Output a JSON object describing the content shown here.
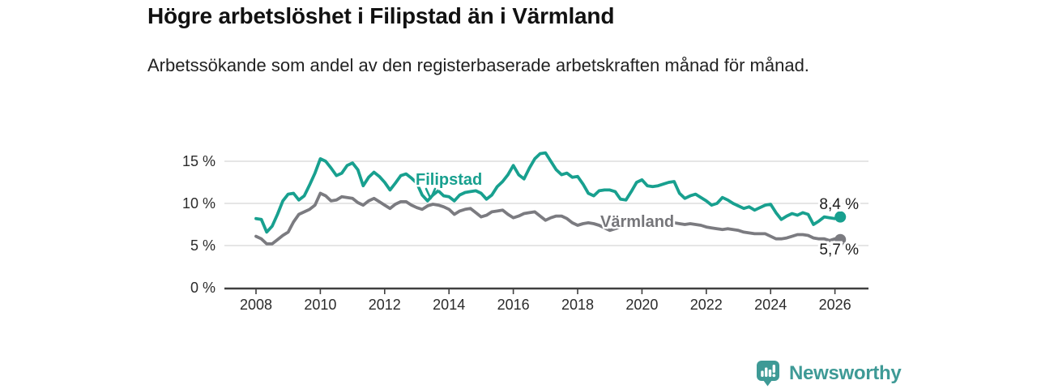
{
  "header": {
    "title": "Högre arbetslöshet i Filipstad än i Värmland",
    "subtitle": "Arbetssökande som andel av den registerbaserade arbetskraften månad för månad."
  },
  "footer": {
    "brand": "Newsworthy",
    "brand_color": "#3e9a96",
    "logo_icon": "bar-chart-speech-bubble-icon"
  },
  "chart_data": {
    "type": "line",
    "title": "Högre arbetslöshet i Filipstad än i Värmland",
    "subtitle": "Arbetssökande som andel av den registerbaserade arbetskraften månad för månad.",
    "xlabel": "",
    "ylabel": "",
    "grid": "horizontal",
    "legend_position": "inline-series-labels",
    "x_axis": {
      "ticks": [
        2008,
        2010,
        2012,
        2014,
        2016,
        2018,
        2020,
        2022,
        2024,
        2026
      ],
      "range": [
        2007.0,
        2027.0
      ]
    },
    "y_axis": {
      "ticks": [
        {
          "value": 0,
          "label": "0 %"
        },
        {
          "value": 5,
          "label": "5 %"
        },
        {
          "value": 10,
          "label": "10 %"
        },
        {
          "value": 15,
          "label": "15 %"
        }
      ],
      "gridlines": [
        5,
        10,
        15
      ],
      "range": [
        0,
        16.5
      ]
    },
    "x_start": 2008.0,
    "x_step_years": 0.166667,
    "series": [
      {
        "name": "Filipstad",
        "annotation": "Filipstad",
        "end_label": "8,4 %",
        "end_value": 8.4,
        "color": "#18a08f",
        "values": [
          8.2,
          8.1,
          6.6,
          7.3,
          8.7,
          10.3,
          11.1,
          11.2,
          10.4,
          10.9,
          12.2,
          13.6,
          15.3,
          15.0,
          14.2,
          13.3,
          13.6,
          14.5,
          14.8,
          14.0,
          12.1,
          13.1,
          13.7,
          13.2,
          12.5,
          11.6,
          12.4,
          13.3,
          13.5,
          13.0,
          12.4,
          11.0,
          10.3,
          11.0,
          11.5,
          10.9,
          10.8,
          10.3,
          11.0,
          11.3,
          11.4,
          11.5,
          11.2,
          10.5,
          11.0,
          12.0,
          12.6,
          13.4,
          14.5,
          13.4,
          12.9,
          14.2,
          15.3,
          15.9,
          16.0,
          15.0,
          14.0,
          13.4,
          13.6,
          13.1,
          13.2,
          12.3,
          11.2,
          10.9,
          11.5,
          11.6,
          11.6,
          11.4,
          10.5,
          10.4,
          11.4,
          12.5,
          12.8,
          12.1,
          12.0,
          12.1,
          12.3,
          12.5,
          12.6,
          11.2,
          10.6,
          10.9,
          11.1,
          10.7,
          10.3,
          9.8,
          10.0,
          10.7,
          10.4,
          10.0,
          9.7,
          9.4,
          9.6,
          9.2,
          9.5,
          9.8,
          9.9,
          8.9,
          8.1,
          8.5,
          8.8,
          8.6,
          8.9,
          8.7,
          7.5,
          7.9,
          8.4,
          8.3,
          8.2,
          8.4
        ]
      },
      {
        "name": "Värmland",
        "annotation": "Värmland",
        "end_label": "5,7 %",
        "end_value": 5.7,
        "color": "#7b7b80",
        "values": [
          6.1,
          5.8,
          5.2,
          5.2,
          5.7,
          6.2,
          6.6,
          7.8,
          8.7,
          9.0,
          9.3,
          9.8,
          11.2,
          10.9,
          10.3,
          10.4,
          10.8,
          10.7,
          10.6,
          10.1,
          9.8,
          10.3,
          10.6,
          10.2,
          9.8,
          9.4,
          9.9,
          10.2,
          10.2,
          9.8,
          9.5,
          9.3,
          9.7,
          9.9,
          9.8,
          9.6,
          9.3,
          8.7,
          9.1,
          9.3,
          9.4,
          8.9,
          8.4,
          8.6,
          9.0,
          9.1,
          9.2,
          8.7,
          8.3,
          8.5,
          8.8,
          8.9,
          9.0,
          8.5,
          8.0,
          8.3,
          8.5,
          8.5,
          8.2,
          7.7,
          7.4,
          7.6,
          7.7,
          7.6,
          7.4,
          7.1,
          6.8,
          7.0,
          7.2,
          7.3,
          7.3,
          7.4,
          7.4,
          7.6,
          7.9,
          7.8,
          7.7,
          7.7,
          7.7,
          7.6,
          7.5,
          7.6,
          7.5,
          7.4,
          7.2,
          7.1,
          7.0,
          6.9,
          7.0,
          6.9,
          6.8,
          6.6,
          6.5,
          6.4,
          6.4,
          6.4,
          6.1,
          5.8,
          5.8,
          5.9,
          6.1,
          6.3,
          6.3,
          6.2,
          5.9,
          5.8,
          5.8,
          5.6,
          5.8,
          5.7
        ]
      }
    ]
  },
  "colors": {
    "grid": "#d8d8d8",
    "axis": "#404040",
    "tick_text": "#2b2b2b",
    "value_label_text": "#1a1a1a"
  }
}
